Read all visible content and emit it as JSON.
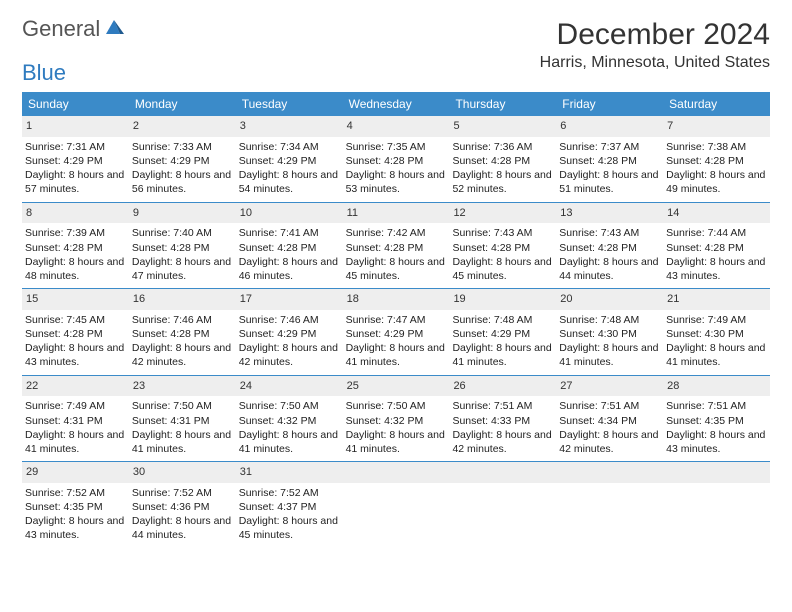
{
  "logo": {
    "word1": "General",
    "word2": "Blue"
  },
  "title": "December 2024",
  "location": "Harris, Minnesota, United States",
  "colors": {
    "header_bg": "#3b8bc9",
    "header_text": "#ffffff",
    "daynum_bg": "#eeeeee",
    "row_border": "#3b8bc9",
    "logo_gray": "#555555",
    "logo_blue": "#2f7bbf",
    "text": "#222222",
    "background": "#ffffff"
  },
  "typography": {
    "title_fontsize": 30,
    "location_fontsize": 16,
    "logo_fontsize": 22,
    "weekday_fontsize": 12,
    "daynum_fontsize": 11,
    "body_fontsize": 10.5
  },
  "weekdays": [
    "Sunday",
    "Monday",
    "Tuesday",
    "Wednesday",
    "Thursday",
    "Friday",
    "Saturday"
  ],
  "weeks": [
    [
      {
        "n": "1",
        "sr": "Sunrise: 7:31 AM",
        "ss": "Sunset: 4:29 PM",
        "dl": "Daylight: 8 hours and 57 minutes."
      },
      {
        "n": "2",
        "sr": "Sunrise: 7:33 AM",
        "ss": "Sunset: 4:29 PM",
        "dl": "Daylight: 8 hours and 56 minutes."
      },
      {
        "n": "3",
        "sr": "Sunrise: 7:34 AM",
        "ss": "Sunset: 4:29 PM",
        "dl": "Daylight: 8 hours and 54 minutes."
      },
      {
        "n": "4",
        "sr": "Sunrise: 7:35 AM",
        "ss": "Sunset: 4:28 PM",
        "dl": "Daylight: 8 hours and 53 minutes."
      },
      {
        "n": "5",
        "sr": "Sunrise: 7:36 AM",
        "ss": "Sunset: 4:28 PM",
        "dl": "Daylight: 8 hours and 52 minutes."
      },
      {
        "n": "6",
        "sr": "Sunrise: 7:37 AM",
        "ss": "Sunset: 4:28 PM",
        "dl": "Daylight: 8 hours and 51 minutes."
      },
      {
        "n": "7",
        "sr": "Sunrise: 7:38 AM",
        "ss": "Sunset: 4:28 PM",
        "dl": "Daylight: 8 hours and 49 minutes."
      }
    ],
    [
      {
        "n": "8",
        "sr": "Sunrise: 7:39 AM",
        "ss": "Sunset: 4:28 PM",
        "dl": "Daylight: 8 hours and 48 minutes."
      },
      {
        "n": "9",
        "sr": "Sunrise: 7:40 AM",
        "ss": "Sunset: 4:28 PM",
        "dl": "Daylight: 8 hours and 47 minutes."
      },
      {
        "n": "10",
        "sr": "Sunrise: 7:41 AM",
        "ss": "Sunset: 4:28 PM",
        "dl": "Daylight: 8 hours and 46 minutes."
      },
      {
        "n": "11",
        "sr": "Sunrise: 7:42 AM",
        "ss": "Sunset: 4:28 PM",
        "dl": "Daylight: 8 hours and 45 minutes."
      },
      {
        "n": "12",
        "sr": "Sunrise: 7:43 AM",
        "ss": "Sunset: 4:28 PM",
        "dl": "Daylight: 8 hours and 45 minutes."
      },
      {
        "n": "13",
        "sr": "Sunrise: 7:43 AM",
        "ss": "Sunset: 4:28 PM",
        "dl": "Daylight: 8 hours and 44 minutes."
      },
      {
        "n": "14",
        "sr": "Sunrise: 7:44 AM",
        "ss": "Sunset: 4:28 PM",
        "dl": "Daylight: 8 hours and 43 minutes."
      }
    ],
    [
      {
        "n": "15",
        "sr": "Sunrise: 7:45 AM",
        "ss": "Sunset: 4:28 PM",
        "dl": "Daylight: 8 hours and 43 minutes."
      },
      {
        "n": "16",
        "sr": "Sunrise: 7:46 AM",
        "ss": "Sunset: 4:28 PM",
        "dl": "Daylight: 8 hours and 42 minutes."
      },
      {
        "n": "17",
        "sr": "Sunrise: 7:46 AM",
        "ss": "Sunset: 4:29 PM",
        "dl": "Daylight: 8 hours and 42 minutes."
      },
      {
        "n": "18",
        "sr": "Sunrise: 7:47 AM",
        "ss": "Sunset: 4:29 PM",
        "dl": "Daylight: 8 hours and 41 minutes."
      },
      {
        "n": "19",
        "sr": "Sunrise: 7:48 AM",
        "ss": "Sunset: 4:29 PM",
        "dl": "Daylight: 8 hours and 41 minutes."
      },
      {
        "n": "20",
        "sr": "Sunrise: 7:48 AM",
        "ss": "Sunset: 4:30 PM",
        "dl": "Daylight: 8 hours and 41 minutes."
      },
      {
        "n": "21",
        "sr": "Sunrise: 7:49 AM",
        "ss": "Sunset: 4:30 PM",
        "dl": "Daylight: 8 hours and 41 minutes."
      }
    ],
    [
      {
        "n": "22",
        "sr": "Sunrise: 7:49 AM",
        "ss": "Sunset: 4:31 PM",
        "dl": "Daylight: 8 hours and 41 minutes."
      },
      {
        "n": "23",
        "sr": "Sunrise: 7:50 AM",
        "ss": "Sunset: 4:31 PM",
        "dl": "Daylight: 8 hours and 41 minutes."
      },
      {
        "n": "24",
        "sr": "Sunrise: 7:50 AM",
        "ss": "Sunset: 4:32 PM",
        "dl": "Daylight: 8 hours and 41 minutes."
      },
      {
        "n": "25",
        "sr": "Sunrise: 7:50 AM",
        "ss": "Sunset: 4:32 PM",
        "dl": "Daylight: 8 hours and 41 minutes."
      },
      {
        "n": "26",
        "sr": "Sunrise: 7:51 AM",
        "ss": "Sunset: 4:33 PM",
        "dl": "Daylight: 8 hours and 42 minutes."
      },
      {
        "n": "27",
        "sr": "Sunrise: 7:51 AM",
        "ss": "Sunset: 4:34 PM",
        "dl": "Daylight: 8 hours and 42 minutes."
      },
      {
        "n": "28",
        "sr": "Sunrise: 7:51 AM",
        "ss": "Sunset: 4:35 PM",
        "dl": "Daylight: 8 hours and 43 minutes."
      }
    ],
    [
      {
        "n": "29",
        "sr": "Sunrise: 7:52 AM",
        "ss": "Sunset: 4:35 PM",
        "dl": "Daylight: 8 hours and 43 minutes."
      },
      {
        "n": "30",
        "sr": "Sunrise: 7:52 AM",
        "ss": "Sunset: 4:36 PM",
        "dl": "Daylight: 8 hours and 44 minutes."
      },
      {
        "n": "31",
        "sr": "Sunrise: 7:52 AM",
        "ss": "Sunset: 4:37 PM",
        "dl": "Daylight: 8 hours and 45 minutes."
      },
      {
        "n": "",
        "sr": "",
        "ss": "",
        "dl": "",
        "empty": true
      },
      {
        "n": "",
        "sr": "",
        "ss": "",
        "dl": "",
        "empty": true
      },
      {
        "n": "",
        "sr": "",
        "ss": "",
        "dl": "",
        "empty": true
      },
      {
        "n": "",
        "sr": "",
        "ss": "",
        "dl": "",
        "empty": true
      }
    ]
  ]
}
